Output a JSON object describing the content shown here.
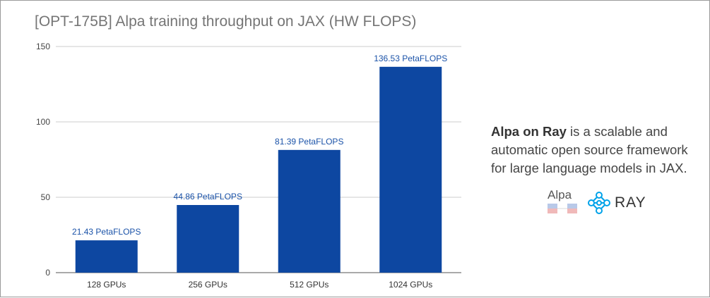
{
  "chart_data": {
    "type": "bar",
    "title": "[OPT-175B] Alpa training throughput on JAX (HW FLOPS)",
    "categories": [
      "128 GPUs",
      "256 GPUs",
      "512 GPUs",
      "1024 GPUs"
    ],
    "values": [
      21.43,
      44.86,
      81.39,
      136.53
    ],
    "data_labels": [
      "21.43 PetaFLOPS",
      "44.86 PetaFLOPS",
      "81.39 PetaFLOPS",
      "136.53 PetaFLOPS"
    ],
    "yticks": [
      0,
      50,
      100,
      150
    ],
    "ylim": [
      0,
      150
    ],
    "xlabel": "",
    "ylabel": "",
    "grid": true,
    "bar_color": "#0d47a1",
    "label_color": "#1a52a8"
  },
  "side_panel": {
    "highlight": "Alpa on Ray",
    "text": " is a scalable and automatic open source framework for large language models in JAX.",
    "alpa_logo_text": "Alpa",
    "ray_logo_text": "RAY",
    "ray_color": "#00a2e9"
  }
}
